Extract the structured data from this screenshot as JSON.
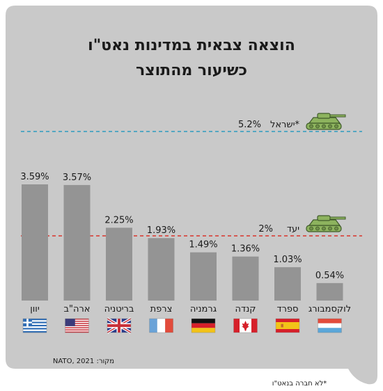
{
  "chart_data": {
    "type": "bar",
    "title_line1": "הוצאה צבאית במדינות נאט\"ו",
    "title_line2": "כשיעור מהתוצר",
    "categories": [
      "יוון",
      "ארה\"ב",
      "בריטניה",
      "צרפת",
      "גרמניה",
      "קנדה",
      "ספרד",
      "לוקסמבורג"
    ],
    "values": [
      3.59,
      3.57,
      2.25,
      1.93,
      1.49,
      1.36,
      1.03,
      0.54
    ],
    "value_labels": [
      "3.59%",
      "3.57%",
      "2.25%",
      "1.93%",
      "1.49%",
      "1.36%",
      "1.03%",
      "0.54%"
    ],
    "flags": [
      "greece",
      "usa",
      "uk",
      "france",
      "germany",
      "canada",
      "spain",
      "luxembourg"
    ],
    "reference_lines": [
      {
        "label": "ישראל*",
        "value_label": "5.2%",
        "value": 5.2,
        "color": "#2e9cc0"
      },
      {
        "label": "יעד",
        "value_label": "2%",
        "value": 2.0,
        "color": "#d9342b"
      }
    ],
    "source": "מקור: NATO, 2021",
    "footnote": "*לא חברה בנאט\"ו",
    "colors": {
      "panel": "#c9c9c9",
      "bar": "#949494",
      "tank": "#8db35e"
    }
  }
}
